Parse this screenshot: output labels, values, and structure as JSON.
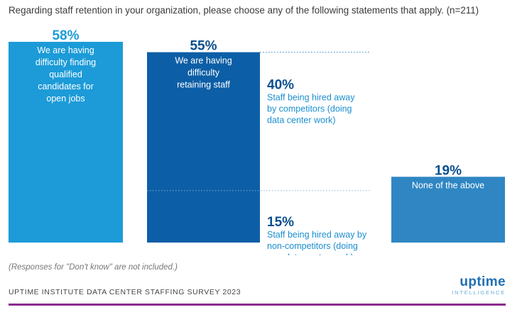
{
  "title": "Regarding staff retention in your organization, please choose any of the following statements that apply. (n=211)",
  "note": "(Responses for \"Don't know\" are not included.)",
  "source": "UPTIME INSTITUTE DATA CENTER STAFFING SURVEY 2023",
  "logo": {
    "word": "uptime",
    "sub": "INTELLIGENCE"
  },
  "colors": {
    "bar_light": "#1c9bd8",
    "bar_dark": "#0c5ea6",
    "bar_mid": "#2f86c3",
    "pct_light": "#1c9bd8",
    "pct_dark": "#0b4f8e",
    "segment_text": "#1c8fd0",
    "dotted": "#2f86c3",
    "footer_rule": "#8a2a8c"
  },
  "chart_data": {
    "type": "bar",
    "ylim": [
      0,
      60
    ],
    "bars": [
      {
        "pct_label": "58%",
        "value": 58,
        "label_lines": [
          "We are having",
          "difficulty finding",
          "qualified",
          "candidates for",
          "open jobs"
        ],
        "style": "light"
      },
      {
        "pct_label": "55%",
        "value": 55,
        "label_lines": [
          "We are having",
          "difficulty",
          "retaining staff"
        ],
        "style": "dark",
        "breakdown": [
          {
            "pct_label": "40%",
            "value": 40,
            "label_lines": [
              "Staff being hired away",
              "by competitors (doing",
              "data center work)"
            ]
          },
          {
            "pct_label": "15%",
            "value": 15,
            "label_lines": [
              "Staff being hired away by",
              "non-competitors (doing",
              "non-data center work)"
            ]
          }
        ]
      },
      {
        "pct_label": "19%",
        "value": 19,
        "label_lines": [
          "None of the above"
        ],
        "style": "mid"
      }
    ]
  }
}
